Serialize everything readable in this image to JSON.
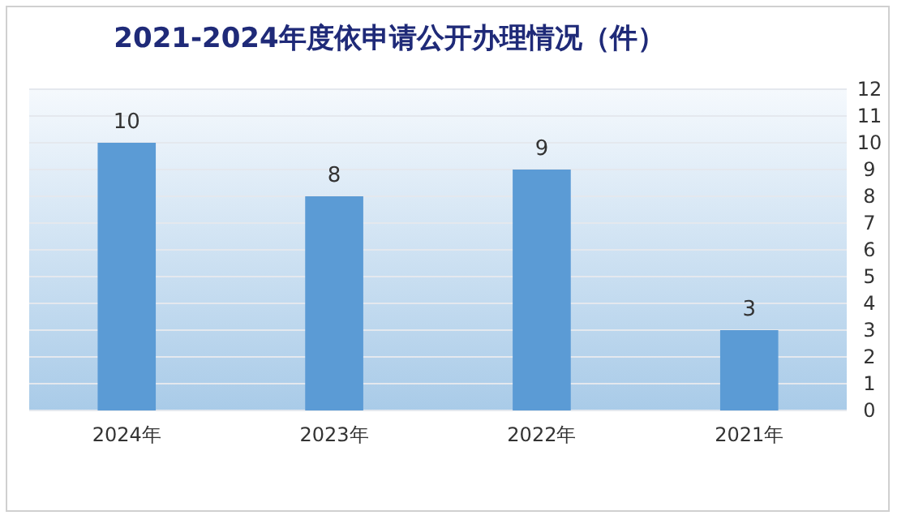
{
  "chart_data": {
    "type": "bar",
    "title": "2021-2024年度依申请公开办理情况（件）",
    "categories": [
      "2024年",
      "2023年",
      "2022年",
      "2021年"
    ],
    "values": [
      10,
      8,
      9,
      3
    ],
    "color": "#5b9bd5",
    "ylim": [
      0,
      12
    ],
    "yticks": [
      0,
      1,
      2,
      3,
      4,
      5,
      6,
      7,
      8,
      9,
      10,
      11,
      12
    ],
    "grid": "y",
    "data_labels": true
  }
}
